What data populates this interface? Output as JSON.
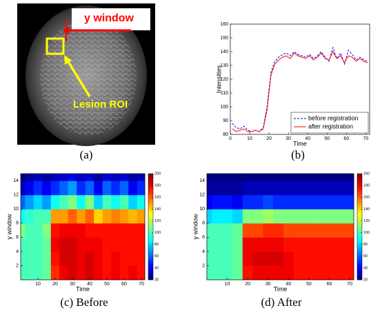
{
  "image": {
    "label_window": "y window",
    "label_roi": "Lesion ROI"
  },
  "captions": [
    "(a)",
    "(b)",
    "(c) Before",
    "(d) After"
  ],
  "chart_data": [
    {
      "type": "line",
      "xlabel": "Time",
      "ylabel": "Intensities",
      "x": [
        1,
        3,
        5,
        7,
        9,
        11,
        13,
        15,
        17,
        19,
        21,
        23,
        25,
        27,
        29,
        31,
        33,
        35,
        37,
        39,
        41,
        43,
        45,
        47,
        49,
        51,
        53,
        55,
        57,
        59,
        61,
        63,
        65,
        67,
        69,
        71
      ],
      "xlim": [
        0,
        72
      ],
      "xticks": [
        0,
        10,
        20,
        30,
        40,
        50,
        60,
        70
      ],
      "ylim": [
        80,
        160
      ],
      "yticks": [
        80,
        90,
        100,
        110,
        120,
        130,
        140,
        150,
        160
      ],
      "legend": "lower right",
      "series": [
        {
          "name": "before registration",
          "color": "#0000ff",
          "linestyle": "dashed",
          "values": [
            88,
            85,
            84,
            86,
            83,
            82,
            83,
            82,
            85,
            100,
            125,
            133,
            136,
            138,
            139,
            137,
            140,
            138,
            137,
            136,
            138,
            135,
            137,
            140,
            136,
            133,
            143,
            135,
            139,
            131,
            141,
            138,
            134,
            136,
            134,
            133
          ]
        },
        {
          "name": "after registration",
          "color": "#ff0000",
          "linestyle": "solid",
          "values": [
            84,
            82,
            83,
            84,
            82,
            82,
            83,
            82,
            84,
            98,
            123,
            131,
            134,
            136,
            137,
            135,
            139,
            137,
            136,
            135,
            137,
            134,
            136,
            139,
            135,
            134,
            140,
            135,
            137,
            132,
            137,
            136,
            133,
            135,
            133,
            132
          ]
        }
      ]
    },
    {
      "type": "contour",
      "xlabel": "Time",
      "ylabel": "y window",
      "colormap": "jet",
      "x": [
        0,
        5,
        10,
        15,
        20,
        25,
        30,
        35,
        40,
        45,
        50,
        55,
        60,
        65,
        70
      ],
      "y": [
        1,
        3,
        5,
        7,
        9,
        11,
        13,
        15
      ],
      "xlim": [
        0,
        72
      ],
      "xticks": [
        10,
        20,
        30,
        40,
        50,
        60,
        70
      ],
      "ylim": [
        0,
        15
      ],
      "yticks": [
        2,
        4,
        6,
        8,
        10,
        12,
        14
      ],
      "zlim": [
        20,
        200
      ],
      "zticks": [
        20,
        40,
        60,
        80,
        100,
        120,
        140,
        160,
        180,
        200
      ],
      "z": [
        [
          100,
          100,
          100,
          105,
          170,
          180,
          185,
          180,
          185,
          180,
          175,
          180,
          175,
          180,
          175
        ],
        [
          100,
          100,
          100,
          105,
          175,
          185,
          185,
          180,
          185,
          180,
          175,
          180,
          175,
          175,
          175
        ],
        [
          100,
          100,
          100,
          105,
          180,
          185,
          185,
          180,
          180,
          180,
          175,
          175,
          175,
          175,
          175
        ],
        [
          110,
          100,
          100,
          110,
          175,
          180,
          180,
          180,
          175,
          175,
          175,
          175,
          175,
          175,
          175
        ],
        [
          90,
          95,
          100,
          100,
          150,
          150,
          160,
          150,
          160,
          140,
          150,
          155,
          150,
          145,
          150
        ],
        [
          60,
          70,
          80,
          70,
          90,
          100,
          110,
          90,
          110,
          80,
          100,
          90,
          100,
          80,
          90
        ],
        [
          30,
          40,
          50,
          40,
          50,
          60,
          70,
          50,
          60,
          40,
          60,
          50,
          60,
          40,
          50
        ],
        [
          20,
          25,
          30,
          25,
          30,
          35,
          40,
          30,
          35,
          25,
          35,
          30,
          35,
          25,
          30
        ]
      ]
    },
    {
      "type": "contour",
      "xlabel": "Time",
      "ylabel": "y window",
      "colormap": "jet",
      "x": [
        0,
        5,
        10,
        15,
        20,
        25,
        30,
        35,
        40,
        45,
        50,
        55,
        60,
        65,
        70
      ],
      "y": [
        1,
        3,
        5,
        7,
        9,
        11,
        13,
        15
      ],
      "xlim": [
        0,
        72
      ],
      "xticks": [
        10,
        20,
        30,
        40,
        50,
        60,
        70
      ],
      "ylim": [
        0,
        15
      ],
      "yticks": [
        2,
        4,
        6,
        8,
        10,
        12,
        14
      ],
      "zlim": [
        20,
        200
      ],
      "zticks": [
        20,
        40,
        60,
        80,
        100,
        120,
        140,
        160,
        180,
        200
      ],
      "z": [
        [
          100,
          100,
          100,
          105,
          175,
          180,
          180,
          180,
          180,
          175,
          175,
          175,
          175,
          175,
          175
        ],
        [
          100,
          100,
          100,
          105,
          180,
          185,
          185,
          185,
          180,
          175,
          175,
          175,
          175,
          175,
          175
        ],
        [
          100,
          100,
          100,
          105,
          180,
          180,
          180,
          180,
          175,
          175,
          175,
          175,
          175,
          175,
          175
        ],
        [
          100,
          100,
          100,
          105,
          165,
          165,
          170,
          170,
          165,
          165,
          165,
          165,
          165,
          165,
          165
        ],
        [
          80,
          85,
          85,
          80,
          110,
          110,
          115,
          110,
          110,
          110,
          110,
          110,
          110,
          110,
          110
        ],
        [
          40,
          45,
          45,
          40,
          50,
          50,
          55,
          50,
          50,
          50,
          50,
          50,
          50,
          50,
          50
        ],
        [
          25,
          25,
          25,
          25,
          30,
          30,
          30,
          30,
          30,
          30,
          30,
          30,
          30,
          30,
          30
        ],
        [
          20,
          20,
          20,
          20,
          20,
          20,
          20,
          20,
          20,
          20,
          20,
          20,
          20,
          20,
          20
        ]
      ]
    }
  ]
}
